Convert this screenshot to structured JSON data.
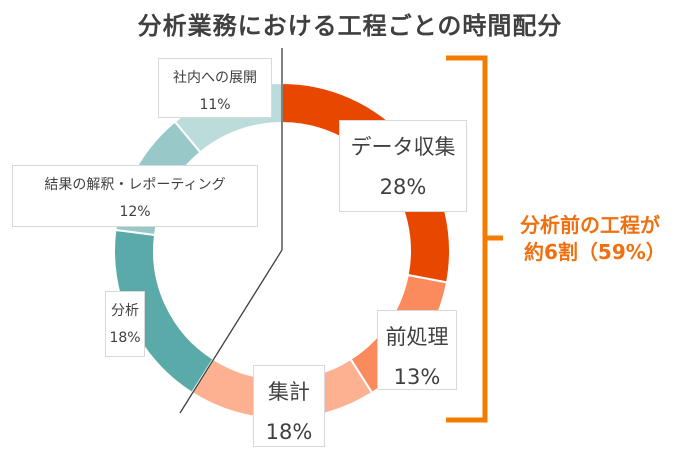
{
  "title": "分析業務における工程ごとの時間配分",
  "chart_data": {
    "type": "pie",
    "subtype": "donut",
    "title": "分析業務における工程ごとの時間配分",
    "categories": [
      "データ収集",
      "前処理",
      "集計",
      "分析",
      "結果の解釈・レポーティング",
      "社内への展開"
    ],
    "values": [
      28,
      13,
      18,
      18,
      12,
      11
    ],
    "unit": "%",
    "colors": [
      "#e84700",
      "#fb8a5c",
      "#fdb191",
      "#5baaaa",
      "#98c8c8",
      "#bcdcdc"
    ],
    "start_angle": "12 o'clock, clockwise",
    "annotation": {
      "text_line1": "分析前の工程が",
      "text_line2": "約6割（59%）",
      "covers": [
        "データ収集",
        "前処理",
        "集計"
      ],
      "value": 59,
      "color": "#f07010"
    }
  },
  "labels": [
    {
      "name": "データ収集",
      "pct": "28%"
    },
    {
      "name": "前処理",
      "pct": "13%"
    },
    {
      "name": "集計",
      "pct": "18%"
    },
    {
      "name": "分析",
      "pct": "18%"
    },
    {
      "name": "結果の解釈・レポーティング",
      "pct": "12%"
    },
    {
      "name": "社内への展開",
      "pct": "11%"
    }
  ],
  "annotation": {
    "line1": "分析前の工程が",
    "line2": "約6割（59%）"
  }
}
